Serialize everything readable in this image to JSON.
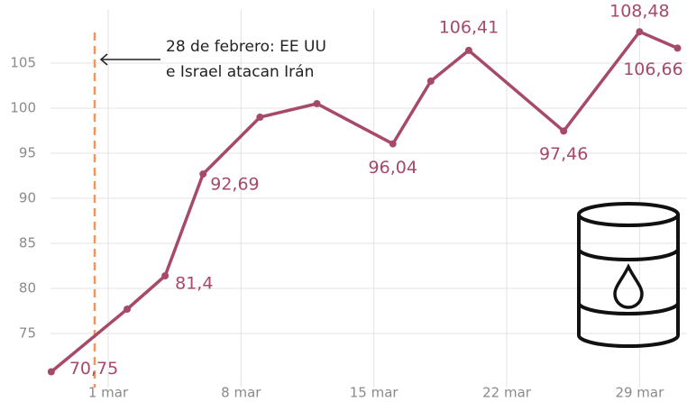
{
  "chart_data": {
    "type": "line",
    "annotation": [
      "28 de febrero: EE UU",
      "e Israel atacan Irán"
    ],
    "x": [
      -2,
      2,
      4,
      6,
      9,
      12,
      16,
      18,
      20,
      25,
      29,
      31
    ],
    "series": [
      {
        "name": null,
        "color": "#a64a68",
        "values": [
          70.75,
          77.7,
          81.4,
          92.69,
          99,
          100.5,
          96.04,
          103,
          106.41,
          97.46,
          108.48,
          106.66
        ],
        "value_labels": [
          "70,75",
          null,
          "81,4",
          "92,69",
          null,
          null,
          "96,04",
          null,
          "106,41",
          "97,46",
          "108,48",
          "106,66"
        ]
      }
    ],
    "xlim": [
      -2.8,
      31.5
    ],
    "xticks": [
      {
        "value": 1,
        "label": "1 mar"
      },
      {
        "value": 8,
        "label": "8 mar"
      },
      {
        "value": 15,
        "label": "15 mar"
      },
      {
        "value": 22,
        "label": "22 mar"
      },
      {
        "value": 29,
        "label": "29 mar"
      }
    ],
    "ylim": [
      69,
      111
    ],
    "yticks": [
      75,
      80,
      85,
      90,
      95,
      100,
      105
    ],
    "grid": true
  }
}
